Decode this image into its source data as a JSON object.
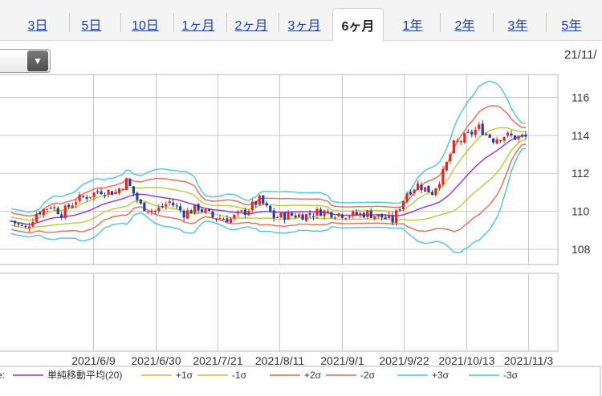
{
  "tabs": [
    {
      "label": "3日",
      "active": false
    },
    {
      "label": "5日",
      "active": false
    },
    {
      "label": "10日",
      "active": false
    },
    {
      "label": "1ヶ月",
      "active": false
    },
    {
      "label": "2ヶ月",
      "active": false
    },
    {
      "label": "3ヶ月",
      "active": false
    },
    {
      "label": "6ヶ月",
      "active": true
    },
    {
      "label": "1年",
      "active": false
    },
    {
      "label": "2年",
      "active": false
    },
    {
      "label": "3年",
      "active": false
    },
    {
      "label": "5年",
      "active": false
    }
  ],
  "select_arrow": "▼",
  "date_label": "21/11/",
  "colors": {
    "candle_up": "#e8261c",
    "candle_down": "#1f3ea8",
    "ma": "#9b30d9",
    "s1": "#b9cc3a",
    "s2": "#ec6a4e",
    "s3": "#4ac6dc",
    "grid": "#c8c8c8"
  },
  "chart_data": {
    "type": "candlestick",
    "y_ticks": [
      108,
      110,
      112,
      114,
      116
    ],
    "ylim": [
      107.2,
      117.2
    ],
    "x_tick_labels": [
      "2021/6/9",
      "2021/6/30",
      "2021/7/21",
      "2021/8/11",
      "2021/9/1",
      "2021/9/22",
      "2021/10/13",
      "2021/11/3"
    ],
    "price_path": [
      [
        0,
        109.5
      ],
      [
        4,
        109.1
      ],
      [
        7,
        109.9
      ],
      [
        11,
        110.3
      ],
      [
        14,
        109.9
      ],
      [
        18,
        110.6
      ],
      [
        21,
        110.8
      ],
      [
        25,
        111.1
      ],
      [
        29,
        111.0
      ],
      [
        32,
        111.6
      ],
      [
        36,
        110.3
      ],
      [
        40,
        110.0
      ],
      [
        44,
        110.5
      ],
      [
        48,
        109.9
      ],
      [
        52,
        110.2
      ],
      [
        56,
        109.7
      ],
      [
        61,
        109.6
      ],
      [
        65,
        110.0
      ],
      [
        69,
        110.6
      ],
      [
        73,
        109.7
      ],
      [
        77,
        109.8
      ],
      [
        82,
        109.8
      ],
      [
        86,
        110.0
      ],
      [
        90,
        109.9
      ],
      [
        95,
        109.8
      ],
      [
        99,
        109.9
      ],
      [
        103,
        109.7
      ],
      [
        106,
        109.5
      ],
      [
        110,
        111.0
      ],
      [
        113,
        111.4
      ],
      [
        117,
        111.0
      ],
      [
        120,
        112.0
      ],
      [
        123,
        113.5
      ],
      [
        127,
        114.0
      ],
      [
        130,
        114.4
      ],
      [
        134,
        113.8
      ],
      [
        137,
        114.0
      ],
      [
        140,
        113.9
      ],
      [
        143,
        113.9
      ]
    ],
    "candle_count": 144,
    "legend": [
      "単純移動平均(20)",
      "+1σ",
      "-1σ",
      "+2σ",
      "-2σ",
      "+3σ",
      "-3σ"
    ],
    "series": [
      {
        "name": "単純移動平均(20)",
        "color": "#9b30d9"
      },
      {
        "name": "+1σ",
        "color": "#b9cc3a"
      },
      {
        "name": "-1σ",
        "color": "#b9cc3a"
      },
      {
        "name": "+2σ",
        "color": "#ec6a4e"
      },
      {
        "name": "-2σ",
        "color": "#ec6a4e"
      },
      {
        "name": "+3σ",
        "color": "#4ac6dc"
      },
      {
        "name": "-3σ",
        "color": "#4ac6dc"
      }
    ]
  }
}
